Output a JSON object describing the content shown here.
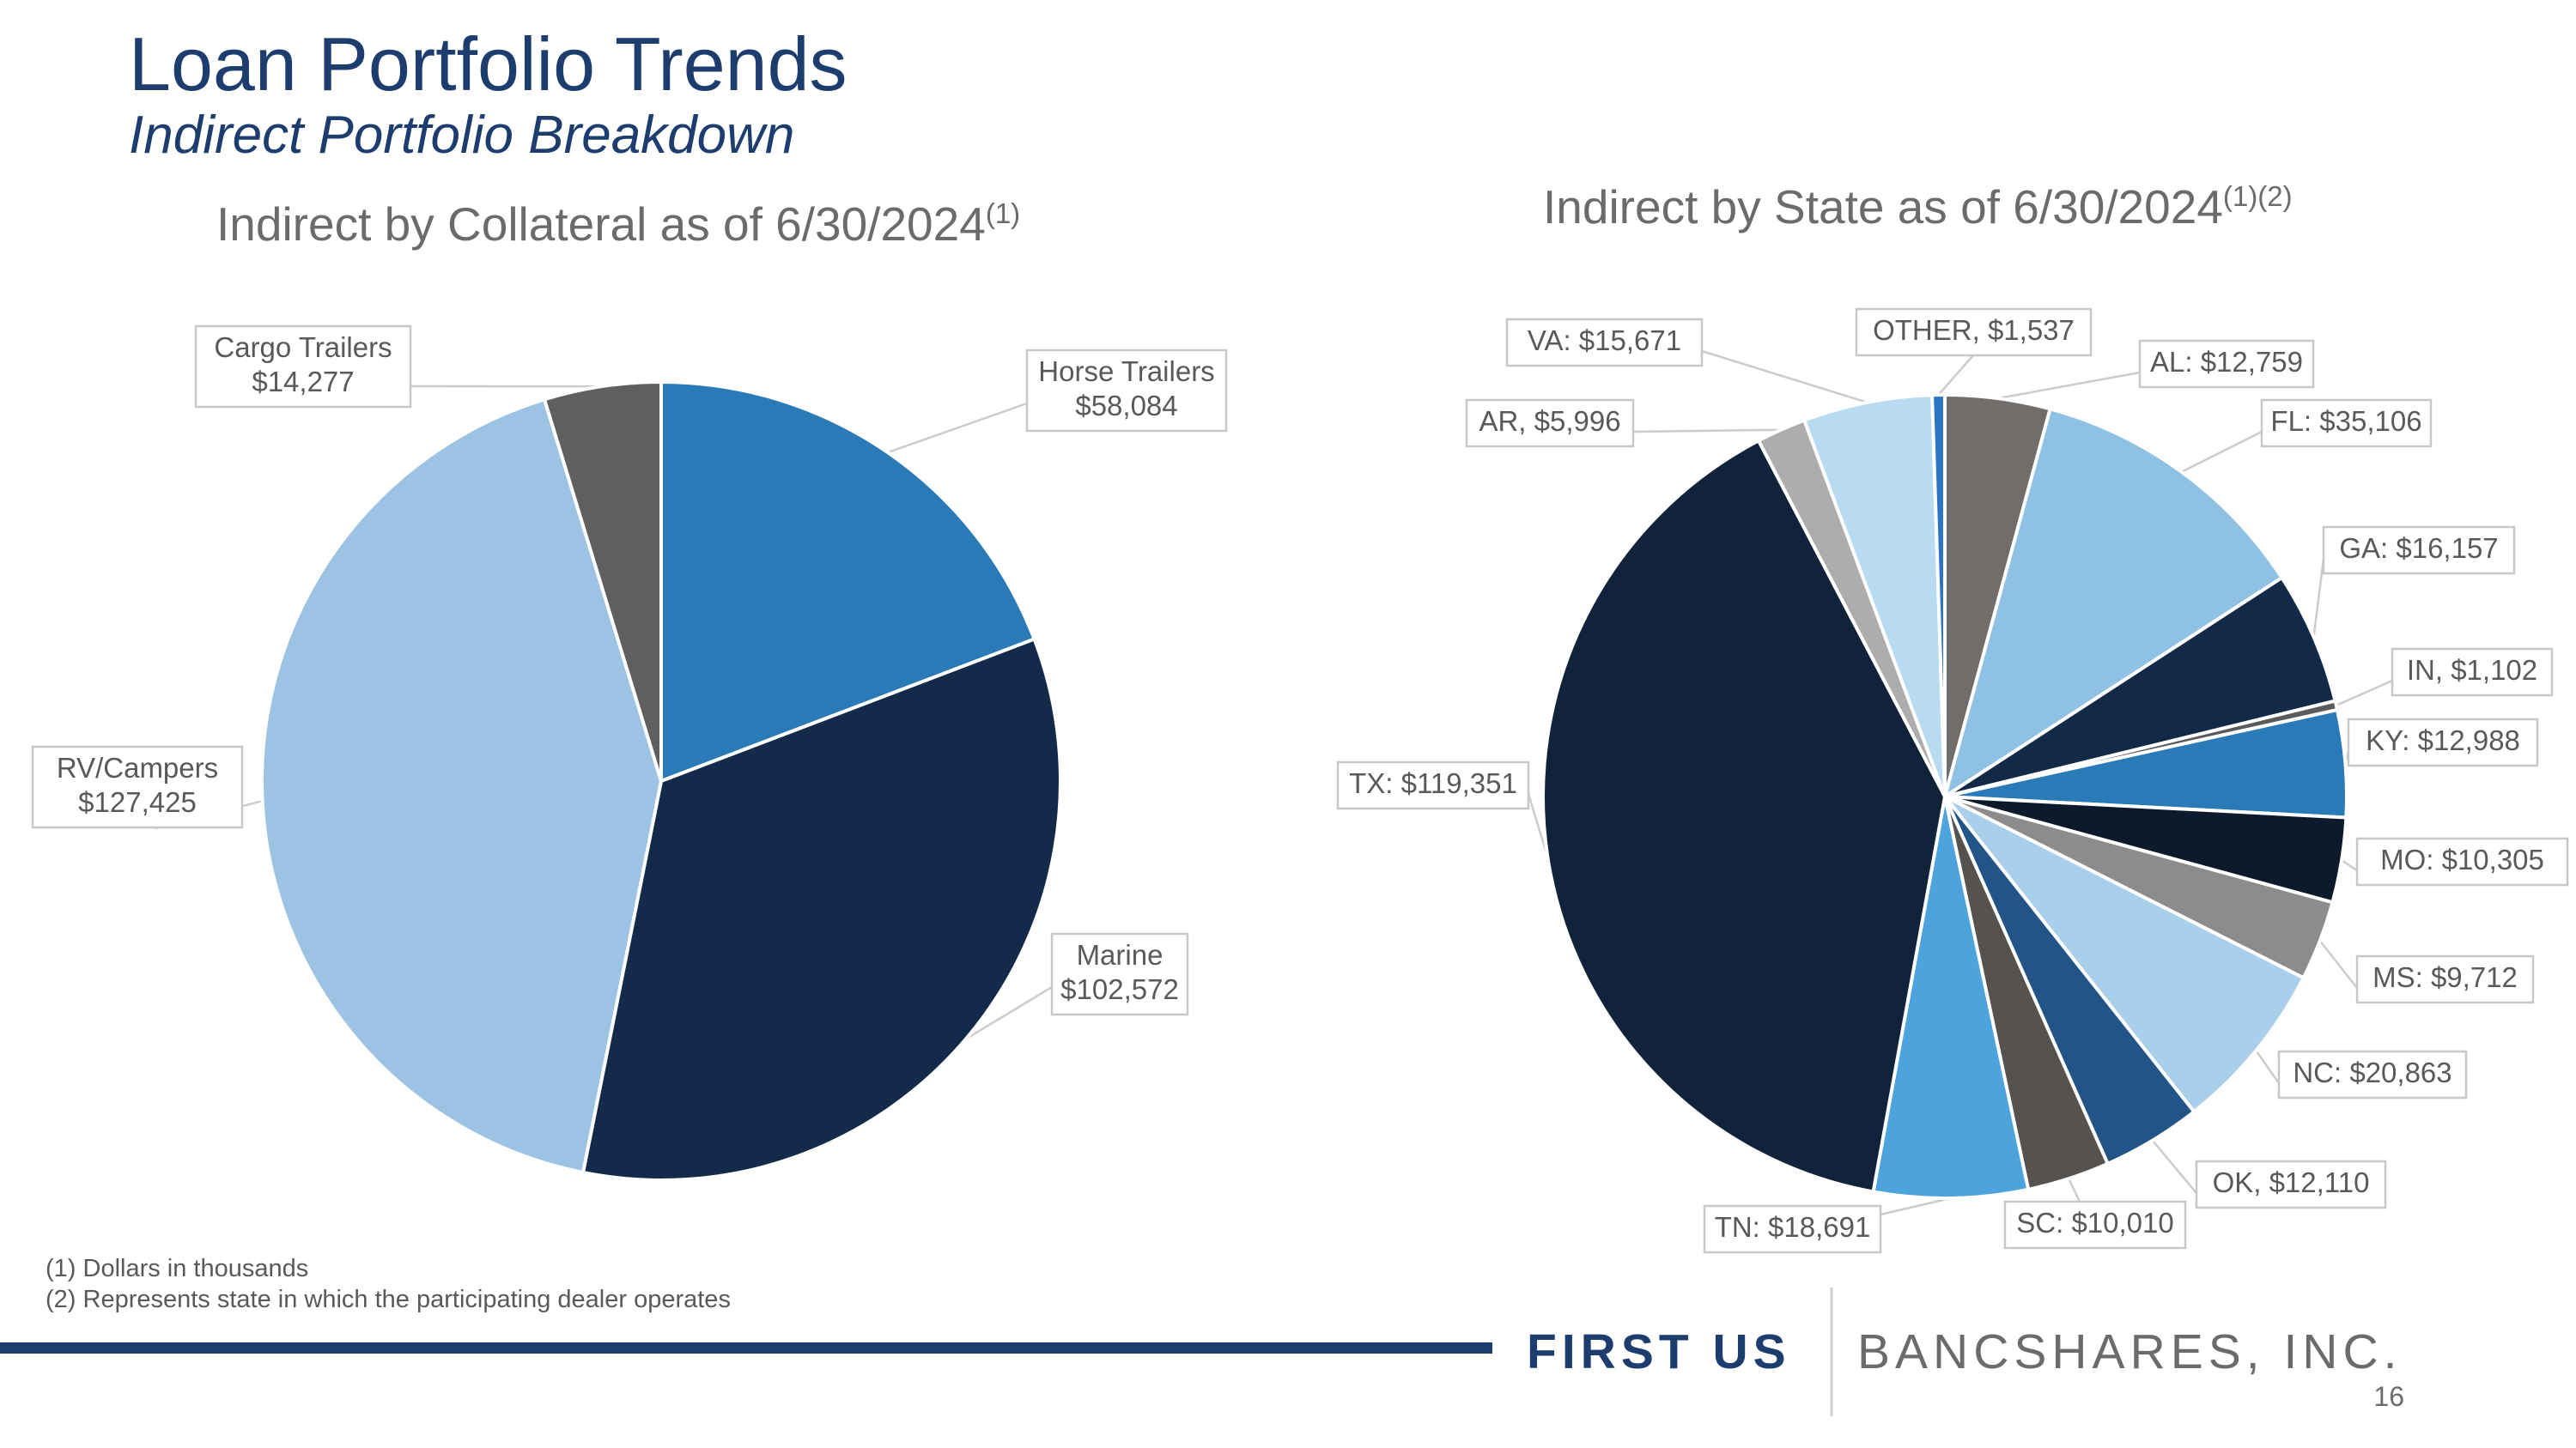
{
  "header": {
    "title": "Loan Portfolio Trends",
    "subtitle": "Indirect Portfolio Breakdown"
  },
  "chart_data": [
    {
      "type": "pie",
      "title": "Indirect by Collateral as of 6/30/2024",
      "title_sup": "(1)",
      "start": "12 o'clock, clockwise",
      "slices": [
        {
          "name": "Horse Trailers",
          "value": 58084,
          "label_line1": "Horse Trailers",
          "label_line2": "$58,084",
          "color": "#2a7ab7"
        },
        {
          "name": "Marine",
          "value": 102572,
          "label_line1": "Marine",
          "label_line2": "$102,572",
          "color": "#132a4a"
        },
        {
          "name": "RV/Campers",
          "value": 127425,
          "label_line1": "RV/Campers",
          "label_line2": "$127,425",
          "color": "#9dc3e4"
        },
        {
          "name": "Cargo Trailers",
          "value": 14277,
          "label_line1": "Cargo Trailers",
          "label_line2": "$14,277",
          "color": "#5f5f5f"
        }
      ]
    },
    {
      "type": "pie",
      "title": "Indirect by State as of 6/30/2024",
      "title_sup": "(1)(2)",
      "start": "12 o'clock, clockwise",
      "slices": [
        {
          "name": "AL",
          "value": 12759,
          "label": "AL: $12,759",
          "color": "#716d6b"
        },
        {
          "name": "FL",
          "value": 35106,
          "label": "FL: $35,106",
          "color": "#8fc1e4"
        },
        {
          "name": "GA",
          "value": 16157,
          "label": "GA: $16,157",
          "color": "#122a48"
        },
        {
          "name": "IN",
          "value": 1102,
          "label": "IN, $1,102",
          "color": "#5b5b5b"
        },
        {
          "name": "KY",
          "value": 12988,
          "label": "KY: $12,988",
          "color": "#2a7ab7"
        },
        {
          "name": "MO",
          "value": 10305,
          "label": "MO: $10,305",
          "color": "#0c1a2c"
        },
        {
          "name": "MS",
          "value": 9712,
          "label": "MS: $9,712",
          "color": "#8e8c8b"
        },
        {
          "name": "NC",
          "value": 20863,
          "label": "NC: $20,863",
          "color": "#a9cfea"
        },
        {
          "name": "OK",
          "value": 12110,
          "label": "OK, $12,110",
          "color": "#225487"
        },
        {
          "name": "SC",
          "value": 10010,
          "label": "SC: $10,010",
          "color": "#555250"
        },
        {
          "name": "TN",
          "value": 18691,
          "label": "TN: $18,691",
          "color": "#4da3dc"
        },
        {
          "name": "TX",
          "value": 119351,
          "label": "TX: $119,351",
          "color": "#10233a"
        },
        {
          "name": "AR",
          "value": 5996,
          "label": "AR, $5,996",
          "color": "#afadab"
        },
        {
          "name": "VA",
          "value": 15671,
          "label": "VA: $15,671",
          "color": "#b8dbf1"
        },
        {
          "name": "OTHER",
          "value": 1537,
          "label": "OTHER, $1,537",
          "color": "#2e74c4"
        }
      ]
    }
  ],
  "footnotes": {
    "note1": "(1) Dollars in thousands",
    "note2": "(2) Represents state in which the participating dealer operates"
  },
  "footer": {
    "brand_bold": "FIRST US",
    "brand_regular": "BANCSHARES, INC.",
    "page_number": "16",
    "accent_color": "#1c3d6e"
  }
}
